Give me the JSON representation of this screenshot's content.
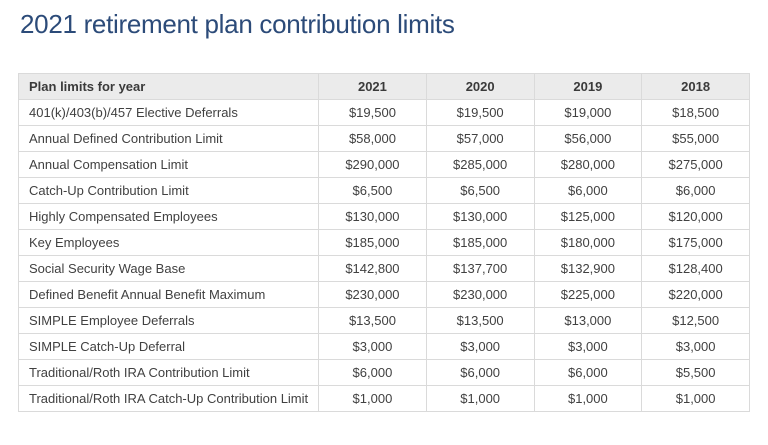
{
  "page": {
    "title": "2021 retirement plan contribution limits"
  },
  "colors": {
    "title_text": "#2c4b79",
    "header_background": "#ebebeb",
    "header_text": "#3a3a3a",
    "body_text": "#414141",
    "border": "#dadada",
    "page_background": "#ffffff"
  },
  "table": {
    "columns": [
      "Plan limits for year",
      "2021",
      "2020",
      "2019",
      "2018"
    ],
    "rows": [
      {
        "label": "401(k)/403(b)/457 Elective Deferrals",
        "values": [
          "$19,500",
          "$19,500",
          "$19,000",
          "$18,500"
        ]
      },
      {
        "label": "Annual Defined Contribution Limit",
        "values": [
          "$58,000",
          "$57,000",
          "$56,000",
          "$55,000"
        ]
      },
      {
        "label": "Annual Compensation Limit",
        "values": [
          "$290,000",
          "$285,000",
          "$280,000",
          "$275,000"
        ]
      },
      {
        "label": "Catch-Up Contribution Limit",
        "values": [
          "$6,500",
          "$6,500",
          "$6,000",
          "$6,000"
        ]
      },
      {
        "label": "Highly Compensated Employees",
        "values": [
          "$130,000",
          "$130,000",
          "$125,000",
          "$120,000"
        ]
      },
      {
        "label": "Key Employees",
        "values": [
          "$185,000",
          "$185,000",
          "$180,000",
          "$175,000"
        ]
      },
      {
        "label": "Social Security Wage Base",
        "values": [
          "$142,800",
          "$137,700",
          "$132,900",
          "$128,400"
        ]
      },
      {
        "label": "Defined Benefit Annual Benefit Maximum",
        "values": [
          "$230,000",
          "$230,000",
          "$225,000",
          "$220,000"
        ]
      },
      {
        "label": "SIMPLE Employee Deferrals",
        "values": [
          "$13,500",
          "$13,500",
          "$13,000",
          "$12,500"
        ]
      },
      {
        "label": "SIMPLE Catch-Up Deferral",
        "values": [
          "$3,000",
          "$3,000",
          "$3,000",
          "$3,000"
        ]
      },
      {
        "label": "Traditional/Roth IRA Contribution Limit",
        "values": [
          "$6,000",
          "$6,000",
          "$6,000",
          "$5,500"
        ]
      },
      {
        "label": "Traditional/Roth IRA Catch-Up Contribution Limit",
        "values": [
          "$1,000",
          "$1,000",
          "$1,000",
          "$1,000"
        ]
      }
    ]
  }
}
